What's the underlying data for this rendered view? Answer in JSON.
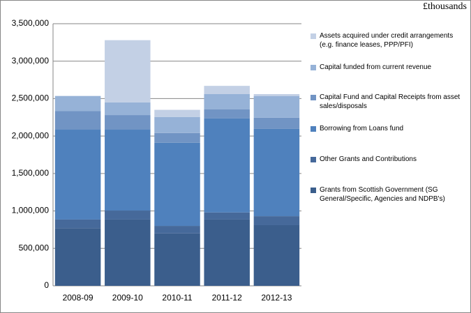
{
  "chart_data": {
    "type": "bar",
    "stacked": true,
    "unit_label": "£thousands",
    "categories": [
      "2008-09",
      "2009-10",
      "2010-11",
      "2011-12",
      "2012-13"
    ],
    "series": [
      {
        "name": "Grants from Scottish Government (SG General/Specific, Agencies and NDPB's)",
        "color": "#3b5e8c",
        "values": [
          770000,
          885000,
          700000,
          885000,
          810000
        ]
      },
      {
        "name": "Other Grants and Contributions",
        "color": "#46699a",
        "values": [
          115000,
          120000,
          100000,
          95000,
          120000
        ]
      },
      {
        "name": "Borrowing from Loans fund",
        "color": "#4f81bd",
        "values": [
          1200000,
          1080000,
          1110000,
          1255000,
          1165000
        ]
      },
      {
        "name": "Capital Fund and Capital Receipts from asset sales/disposals",
        "color": "#7194c4",
        "values": [
          250000,
          195000,
          130000,
          120000,
          150000
        ]
      },
      {
        "name": "Capital funded from current revenue",
        "color": "#96b2d7",
        "values": [
          200000,
          170000,
          215000,
          205000,
          290000
        ]
      },
      {
        "name": "Assets acquired under credit arrangements (e.g. finance leases, PPP/PFI)",
        "color": "#c3d0e5",
        "values": [
          0,
          830000,
          95000,
          110000,
          25000
        ]
      }
    ],
    "ylim": [
      0,
      3500000
    ],
    "yticks": [
      0,
      {
        "value": 500000,
        "label": "500,000"
      },
      {
        "value": 1000000,
        "label": "1,000,000"
      },
      {
        "value": 1500000,
        "label": "1,500,000"
      },
      {
        "value": 2000000,
        "label": "2,000,000"
      },
      {
        "value": 2500000,
        "label": "2,500,000"
      },
      {
        "value": 3000000,
        "label": "3,000,000"
      },
      {
        "value": 3500000,
        "label": "3,500,000"
      }
    ],
    "grid": true
  }
}
